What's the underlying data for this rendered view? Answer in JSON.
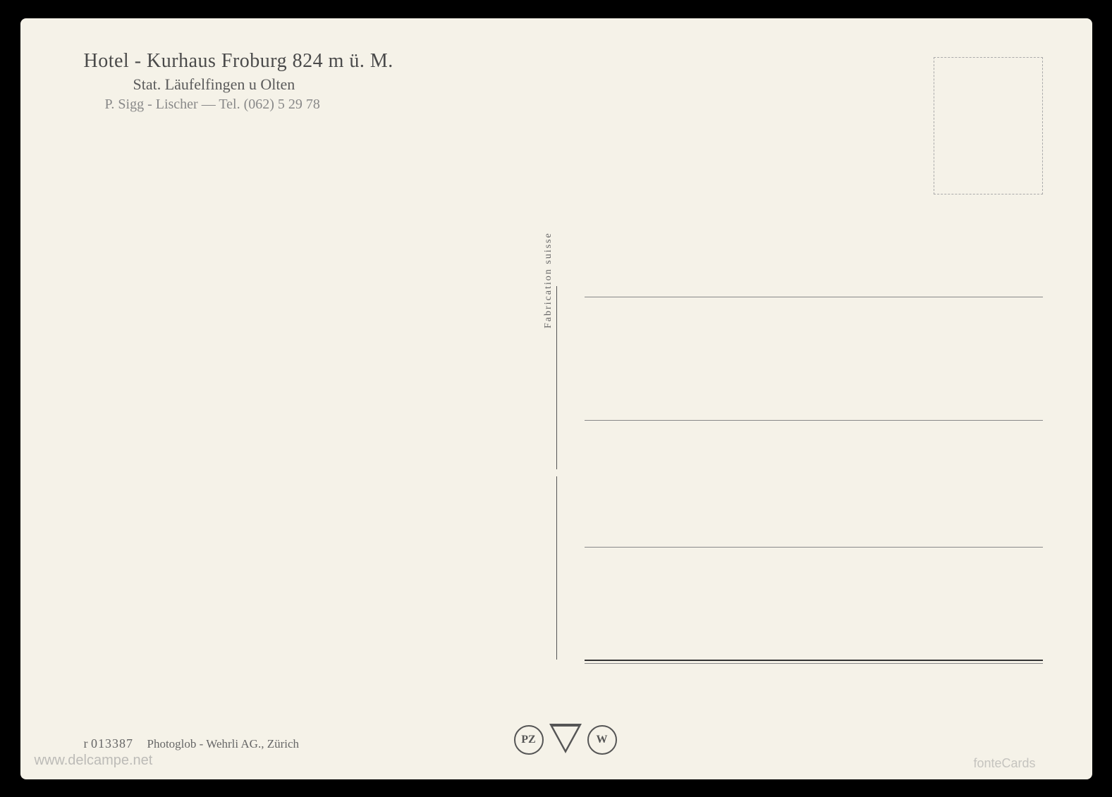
{
  "header": {
    "title": "Hotel - Kurhaus  Froburg  824  m  ü. M.",
    "subtitle": "Stat.  Läufelfingen  u   Olten",
    "contact": "P. Sigg - Lischer    —    Tel.  (062)  5 29 78"
  },
  "divider": {
    "label": "Fabrication suisse"
  },
  "footer": {
    "ref_prefix": "r",
    "ref_number": "013387",
    "publisher": "Photoglob - Wehrli AG., Zürich"
  },
  "logos": {
    "left_circle": "PZ",
    "right_circle": "W"
  },
  "watermark": {
    "site": "www.delcampe.net",
    "brand": "fonteCards"
  },
  "styling": {
    "background_color": "#f5f2e8",
    "frame_color": "#000000",
    "text_primary": "#4a4a4a",
    "text_secondary": "#5a5a5a",
    "text_muted": "#888888",
    "line_color": "#888888",
    "stamp_border": "#aaaaaa",
    "title_fontsize": 28,
    "subtitle_fontsize": 22,
    "contact_fontsize": 20,
    "footer_fontsize": 18
  }
}
